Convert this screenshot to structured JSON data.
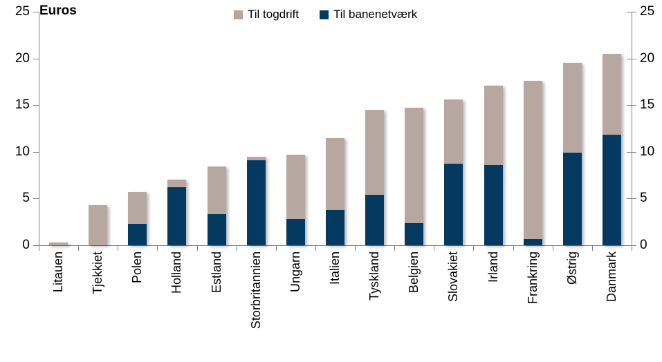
{
  "chart_data": {
    "type": "bar",
    "stacked": true,
    "title": "Euros",
    "categories": [
      "Litauen",
      "Tjekkiet",
      "Polen",
      "Holland",
      "Estland",
      "Storbritannien",
      "Ungarn",
      "Italien",
      "Tyskland",
      "Belgien",
      "Slovakiet",
      "Irland",
      "Frankring",
      "Østrig",
      "Danmark"
    ],
    "series": [
      {
        "name": "Til banenetværk",
        "color": "#053a60",
        "values": [
          0,
          0,
          2.3,
          6.2,
          3.3,
          9.1,
          2.8,
          3.8,
          5.4,
          2.4,
          8.7,
          8.6,
          0.7,
          9.9,
          11.8
        ]
      },
      {
        "name": "Til togdrift",
        "color": "#b6a8a0",
        "values": [
          0.3,
          4.3,
          3.4,
          0.8,
          5.1,
          0.4,
          6.9,
          7.7,
          9.1,
          12.3,
          6.9,
          8.5,
          16.9,
          9.6,
          8.7
        ]
      }
    ],
    "totals": [
      0.3,
      4.3,
      5.7,
      7.0,
      8.4,
      9.5,
      9.7,
      11.5,
      14.5,
      14.7,
      15.6,
      17.1,
      17.6,
      19.5,
      20.5
    ],
    "ylim": [
      0,
      25
    ],
    "yticks": [
      0,
      5,
      10,
      15,
      20,
      25
    ],
    "grid": false,
    "right_axis": true,
    "legend_position": "top",
    "axis_color": "#808080"
  },
  "legend": {
    "items": [
      {
        "label": "Til togdrift",
        "color": "#b6a8a0"
      },
      {
        "label": "Til banenetværk",
        "color": "#053a60"
      }
    ]
  }
}
